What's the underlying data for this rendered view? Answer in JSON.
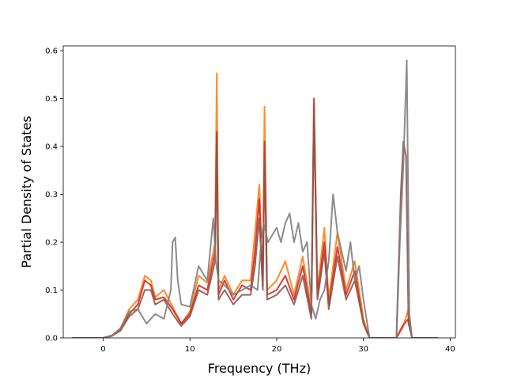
{
  "chart_data": {
    "type": "line",
    "title": "",
    "xlabel": "Frequency (THz)",
    "ylabel": "Partial Density of States",
    "xlim": [
      -4.6,
      40.6
    ],
    "ylim": [
      0.0,
      0.61
    ],
    "xticks": [
      0,
      10,
      20,
      30,
      40
    ],
    "xtick_labels": [
      "0",
      "10",
      "20",
      "30",
      "40"
    ],
    "yticks": [
      0.0,
      0.1,
      0.2,
      0.3,
      0.4,
      0.5,
      0.6
    ],
    "ytick_labels": [
      "0.0",
      "0.1",
      "0.2",
      "0.3",
      "0.4",
      "0.5",
      "0.6"
    ],
    "grid": false,
    "legend": "none",
    "series": [
      {
        "color": "#ff7f0e",
        "points": [
          [
            -3.6,
            0
          ],
          [
            0,
            0
          ],
          [
            1,
            0.005
          ],
          [
            2,
            0.02
          ],
          [
            3,
            0.06
          ],
          [
            4,
            0.08
          ],
          [
            4.8,
            0.13
          ],
          [
            5.5,
            0.12
          ],
          [
            6,
            0.085
          ],
          [
            7,
            0.1
          ],
          [
            8,
            0.065
          ],
          [
            9,
            0.03
          ],
          [
            10,
            0.055
          ],
          [
            11,
            0.13
          ],
          [
            12,
            0.115
          ],
          [
            12.9,
            0.2
          ],
          [
            13.1,
            0.553
          ],
          [
            13.3,
            0.1
          ],
          [
            14,
            0.13
          ],
          [
            15,
            0.09
          ],
          [
            16,
            0.12
          ],
          [
            17,
            0.12
          ],
          [
            17.5,
            0.22
          ],
          [
            18,
            0.32
          ],
          [
            18.4,
            0.12
          ],
          [
            18.6,
            0.483
          ],
          [
            18.9,
            0.1
          ],
          [
            20,
            0.12
          ],
          [
            21,
            0.16
          ],
          [
            22,
            0.09
          ],
          [
            23,
            0.17
          ],
          [
            24,
            0.06
          ],
          [
            24.3,
            0.49
          ],
          [
            24.7,
            0.1
          ],
          [
            25.5,
            0.23
          ],
          [
            26,
            0.08
          ],
          [
            27,
            0.22
          ],
          [
            28,
            0.1
          ],
          [
            29,
            0.16
          ],
          [
            30,
            0.04
          ],
          [
            30.7,
            0
          ],
          [
            33.8,
            0
          ],
          [
            34.5,
            0.02
          ],
          [
            35.2,
            0.06
          ],
          [
            35.6,
            0
          ],
          [
            38.6,
            0
          ]
        ]
      },
      {
        "color": "#d62728",
        "points": [
          [
            -3.6,
            0
          ],
          [
            0,
            0
          ],
          [
            1,
            0.005
          ],
          [
            2,
            0.018
          ],
          [
            3,
            0.05
          ],
          [
            4,
            0.07
          ],
          [
            4.8,
            0.12
          ],
          [
            5.5,
            0.11
          ],
          [
            6,
            0.08
          ],
          [
            7,
            0.085
          ],
          [
            8,
            0.06
          ],
          [
            9,
            0.03
          ],
          [
            10,
            0.05
          ],
          [
            11,
            0.11
          ],
          [
            12,
            0.1
          ],
          [
            12.9,
            0.18
          ],
          [
            13.1,
            0.43
          ],
          [
            13.3,
            0.09
          ],
          [
            14,
            0.12
          ],
          [
            15,
            0.08
          ],
          [
            16,
            0.11
          ],
          [
            17,
            0.1
          ],
          [
            17.5,
            0.18
          ],
          [
            18,
            0.29
          ],
          [
            18.4,
            0.11
          ],
          [
            18.6,
            0.41
          ],
          [
            18.9,
            0.09
          ],
          [
            20,
            0.1
          ],
          [
            21,
            0.13
          ],
          [
            22,
            0.08
          ],
          [
            23,
            0.15
          ],
          [
            24,
            0.05
          ],
          [
            24.3,
            0.5
          ],
          [
            24.7,
            0.09
          ],
          [
            25.5,
            0.2
          ],
          [
            26,
            0.07
          ],
          [
            27,
            0.19
          ],
          [
            28,
            0.09
          ],
          [
            29,
            0.14
          ],
          [
            30,
            0.03
          ],
          [
            30.7,
            0
          ],
          [
            33.8,
            0
          ],
          [
            34.5,
            0.025
          ],
          [
            35.2,
            0.04
          ],
          [
            35.6,
            0
          ],
          [
            38.6,
            0
          ]
        ]
      },
      {
        "color": "#8c564b",
        "points": [
          [
            -3.6,
            0
          ],
          [
            0,
            0
          ],
          [
            1,
            0.004
          ],
          [
            2,
            0.015
          ],
          [
            3,
            0.045
          ],
          [
            4,
            0.06
          ],
          [
            4.8,
            0.1
          ],
          [
            5.5,
            0.1
          ],
          [
            6,
            0.07
          ],
          [
            7,
            0.08
          ],
          [
            8,
            0.05
          ],
          [
            9,
            0.025
          ],
          [
            10,
            0.045
          ],
          [
            11,
            0.1
          ],
          [
            12,
            0.09
          ],
          [
            12.9,
            0.16
          ],
          [
            13.1,
            0.41
          ],
          [
            13.3,
            0.08
          ],
          [
            14,
            0.1
          ],
          [
            15,
            0.07
          ],
          [
            16,
            0.09
          ],
          [
            17,
            0.09
          ],
          [
            17.5,
            0.15
          ],
          [
            18,
            0.25
          ],
          [
            18.4,
            0.1
          ],
          [
            18.6,
            0.38
          ],
          [
            18.9,
            0.08
          ],
          [
            20,
            0.09
          ],
          [
            21,
            0.11
          ],
          [
            22,
            0.07
          ],
          [
            23,
            0.13
          ],
          [
            24,
            0.04
          ],
          [
            24.3,
            0.47
          ],
          [
            24.7,
            0.08
          ],
          [
            25.5,
            0.18
          ],
          [
            26,
            0.06
          ],
          [
            27,
            0.17
          ],
          [
            28,
            0.08
          ],
          [
            29,
            0.12
          ],
          [
            30,
            0.03
          ],
          [
            30.7,
            0
          ],
          [
            33.8,
            0
          ],
          [
            34.3,
            0.3
          ],
          [
            34.6,
            0.41
          ],
          [
            34.9,
            0.38
          ],
          [
            35.2,
            0.03
          ],
          [
            35.6,
            0
          ],
          [
            38.6,
            0
          ]
        ]
      },
      {
        "color": "#7f7f7f",
        "points": [
          [
            -3.6,
            0
          ],
          [
            0,
            0
          ],
          [
            1,
            0.004
          ],
          [
            2,
            0.02
          ],
          [
            3,
            0.055
          ],
          [
            4,
            0.06
          ],
          [
            5,
            0.03
          ],
          [
            6,
            0.05
          ],
          [
            7,
            0.04
          ],
          [
            7.8,
            0.1
          ],
          [
            8,
            0.2
          ],
          [
            8.3,
            0.21
          ],
          [
            8.6,
            0.12
          ],
          [
            9,
            0.07
          ],
          [
            10,
            0.065
          ],
          [
            11,
            0.15
          ],
          [
            12,
            0.12
          ],
          [
            12.7,
            0.25
          ],
          [
            13.0,
            0.16
          ],
          [
            13.3,
            0.12
          ],
          [
            14,
            0.11
          ],
          [
            15,
            0.09
          ],
          [
            16,
            0.1
          ],
          [
            17,
            0.11
          ],
          [
            17.8,
            0.1
          ],
          [
            18.2,
            0.2
          ],
          [
            18.5,
            0.24
          ],
          [
            19,
            0.2
          ],
          [
            20,
            0.23
          ],
          [
            20.5,
            0.2
          ],
          [
            21,
            0.24
          ],
          [
            21.5,
            0.26
          ],
          [
            22,
            0.2
          ],
          [
            22.5,
            0.24
          ],
          [
            23,
            0.18
          ],
          [
            23.5,
            0.2
          ],
          [
            24,
            0.07
          ],
          [
            24.5,
            0.04
          ],
          [
            25,
            0.08
          ],
          [
            25.5,
            0.1
          ],
          [
            26,
            0.16
          ],
          [
            26.5,
            0.3
          ],
          [
            27,
            0.22
          ],
          [
            27.5,
            0.18
          ],
          [
            28,
            0.14
          ],
          [
            28.5,
            0.2
          ],
          [
            29,
            0.12
          ],
          [
            29.5,
            0.15
          ],
          [
            30,
            0.08
          ],
          [
            30.7,
            0
          ],
          [
            33.8,
            0
          ],
          [
            34.2,
            0.2
          ],
          [
            34.6,
            0.36
          ],
          [
            35.0,
            0.58
          ],
          [
            35.3,
            0.05
          ],
          [
            35.6,
            0
          ],
          [
            38.6,
            0
          ]
        ]
      }
    ]
  }
}
